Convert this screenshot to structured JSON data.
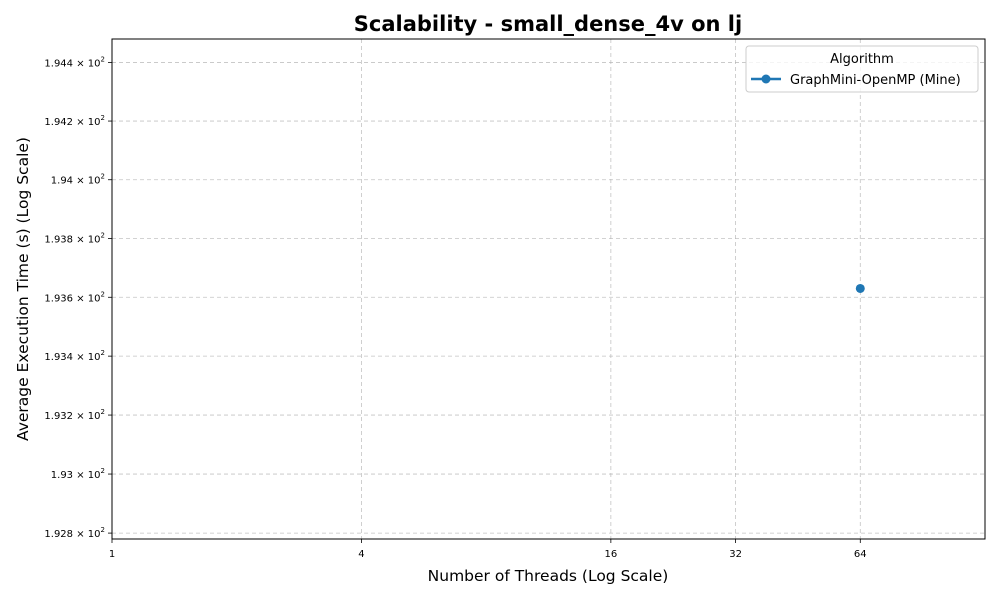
{
  "chart_data": {
    "type": "line",
    "title": "Scalability - small_dense_4v on lj",
    "xlabel": "Number of Threads (Log Scale)",
    "ylabel": "Average Execution Time (s) (Log Scale)",
    "xscale": "log",
    "yscale": "log",
    "xlim": [
      1,
      128
    ],
    "ylim": [
      192.78,
      194.48
    ],
    "x_ticks": [
      {
        "value": 1,
        "label": "1"
      },
      {
        "value": 4,
        "label": "4"
      },
      {
        "value": 16,
        "label": "16"
      },
      {
        "value": 32,
        "label": "32"
      },
      {
        "value": 64,
        "label": "64"
      }
    ],
    "y_ticks": [
      {
        "value": 192.8,
        "mantissa": "1.928",
        "base": "10",
        "exp": "2"
      },
      {
        "value": 193.0,
        "mantissa": "1.93",
        "base": "10",
        "exp": "2"
      },
      {
        "value": 193.2,
        "mantissa": "1.932",
        "base": "10",
        "exp": "2"
      },
      {
        "value": 193.4,
        "mantissa": "1.934",
        "base": "10",
        "exp": "2"
      },
      {
        "value": 193.6,
        "mantissa": "1.936",
        "base": "10",
        "exp": "2"
      },
      {
        "value": 193.8,
        "mantissa": "1.938",
        "base": "10",
        "exp": "2"
      },
      {
        "value": 194.0,
        "mantissa": "1.94",
        "base": "10",
        "exp": "2"
      },
      {
        "value": 194.2,
        "mantissa": "1.942",
        "base": "10",
        "exp": "2"
      },
      {
        "value": 194.4,
        "mantissa": "1.944",
        "base": "10",
        "exp": "2"
      }
    ],
    "grid": true,
    "legend": {
      "title": "Algorithm",
      "placement": "top-right"
    },
    "series": [
      {
        "name": "GraphMini-OpenMP (Mine)",
        "color": "#1f77b4",
        "marker": "circle",
        "points": [
          {
            "x": 64,
            "y": 193.63
          }
        ]
      }
    ]
  }
}
